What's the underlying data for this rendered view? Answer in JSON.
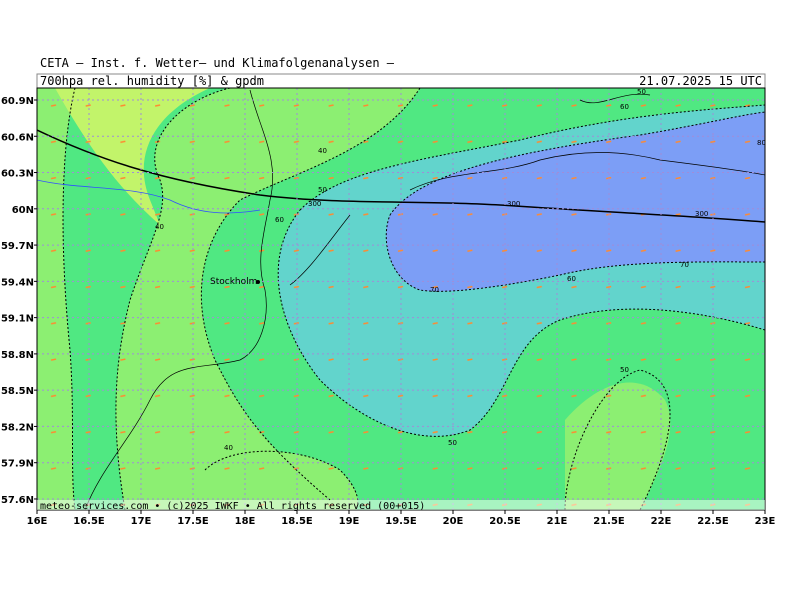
{
  "header": {
    "title": "CETA — Inst. f. Wetter— und Klimafolgenanalysen —",
    "field": "700hpa_rel._humidity_[%]_&_gpdm",
    "time": "21.07.2025 15 UTC"
  },
  "map": {
    "lat_labels": [
      "60.9N",
      "60.6N",
      "60.3N",
      "60N",
      "59.7N",
      "59.4N",
      "59.1N",
      "58.8N",
      "58.5N",
      "58.2N",
      "57.9N",
      "57.6N"
    ],
    "lon_labels": [
      "16E",
      "16.5E",
      "17E",
      "17.5E",
      "18E",
      "18.5E",
      "19E",
      "19.5E",
      "20E",
      "20.5E",
      "21E",
      "21.5E",
      "22E",
      "22.5E",
      "23E"
    ],
    "city": "Stockholm",
    "contour_labels": [
      "40",
      "40",
      "40",
      "50",
      "50",
      "50",
      "50",
      "60",
      "60",
      "60",
      "70",
      "70",
      "80",
      "300",
      "300",
      "300"
    ]
  },
  "footer": "meteo-services.com • (c)2025 IWKF • All rights reserved (00+015)"
}
